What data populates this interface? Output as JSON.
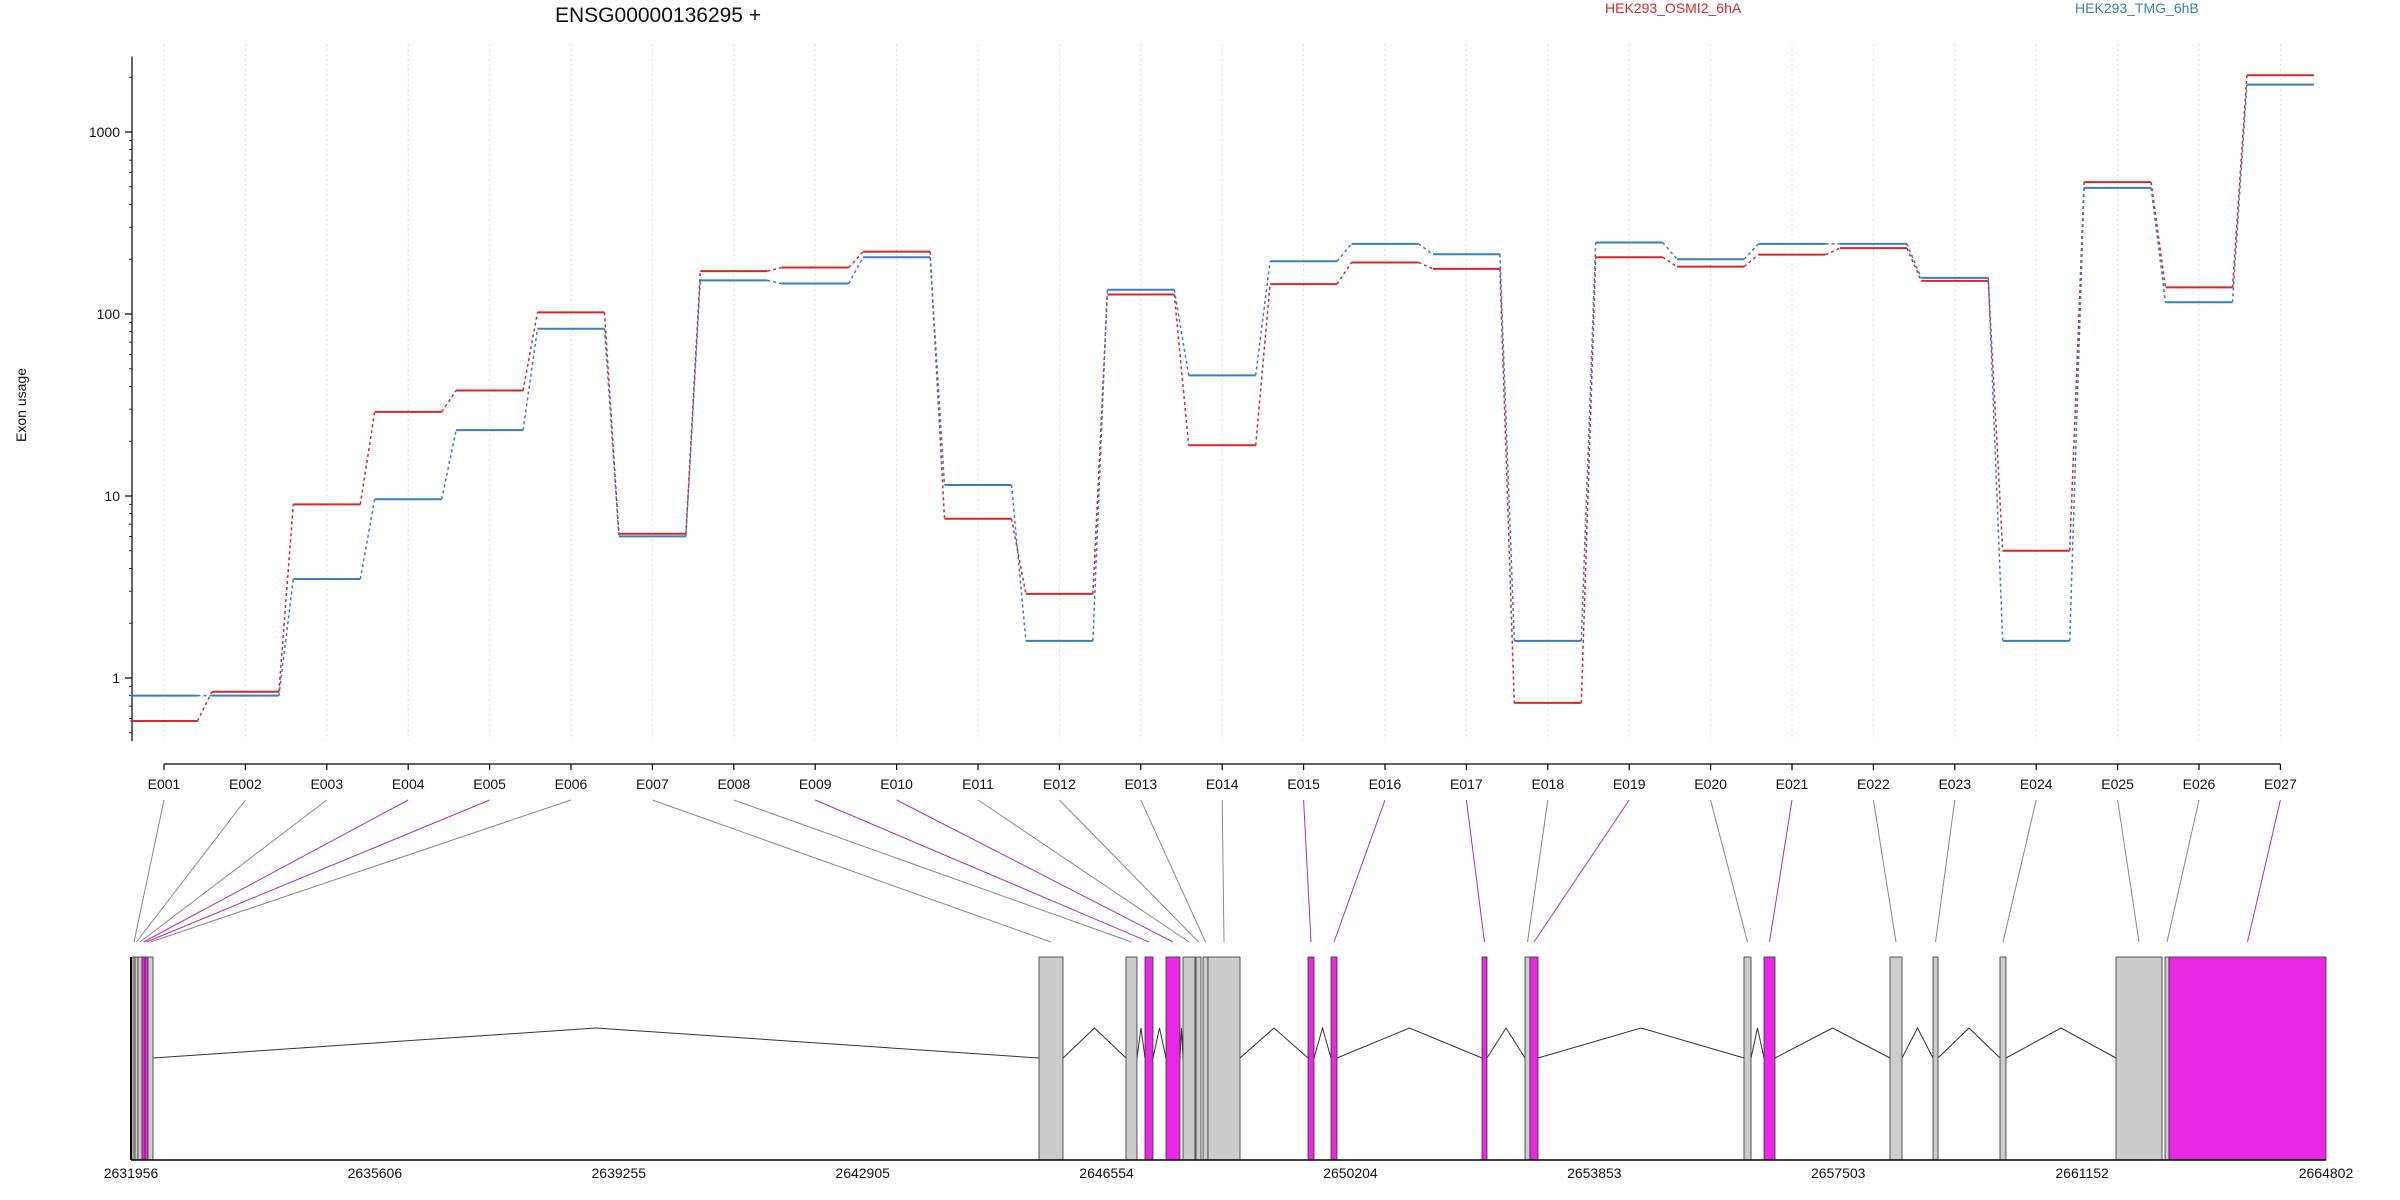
{
  "chart_data": {
    "type": "line",
    "title": "ENSG00000136295 +",
    "ylabel": "Exon usage",
    "y_scale": "log",
    "ylim": [
      0.45,
      2600
    ],
    "yticks": [
      1,
      10,
      100,
      1000
    ],
    "ytick_labels": [
      "1",
      "10",
      "100",
      "1000"
    ],
    "grid": "vertical dotted",
    "legend_placement": "top",
    "categories": [
      "E001",
      "E002",
      "E003",
      "E004",
      "E005",
      "E006",
      "E007",
      "E008",
      "E009",
      "E010",
      "E011",
      "E012",
      "E013",
      "E014",
      "E015",
      "E016",
      "E017",
      "E018",
      "E019",
      "E020",
      "E021",
      "E022",
      "E023",
      "E024",
      "E025",
      "E026",
      "E027"
    ],
    "series": [
      {
        "name": "HEK293_OSMI2_6hA",
        "color": "#d62728",
        "values": [
          0.58,
          0.84,
          9,
          29,
          38,
          102,
          6.2,
          172,
          180,
          220,
          7.5,
          2.9,
          128,
          19,
          146,
          192,
          177,
          0.73,
          205,
          182,
          212,
          230,
          152,
          5,
          530,
          140,
          2050
        ]
      },
      {
        "name": "HEK293_TMG_6hB",
        "color": "#3a7ebf",
        "values": [
          0.8,
          0.8,
          3.5,
          9.6,
          23,
          83,
          6,
          153,
          147,
          205,
          11.5,
          1.6,
          136,
          46,
          195,
          243,
          213,
          1.6,
          247,
          200,
          243,
          243,
          158,
          1.6,
          493,
          116,
          1820
        ]
      }
    ],
    "gene_model": {
      "coordinate_ticks": [
        "2631956",
        "2635606",
        "2639255",
        "2642905",
        "2646554",
        "2650204",
        "2653853",
        "2657503",
        "2661152",
        "2664802"
      ],
      "exon_colors": {
        "normal": "#cccccc",
        "highlight": "#e928e3"
      },
      "highlighted_exons": [
        "E004",
        "E005",
        "E009",
        "E010",
        "E015",
        "E016",
        "E017",
        "E019",
        "E021",
        "E027"
      ]
    }
  }
}
